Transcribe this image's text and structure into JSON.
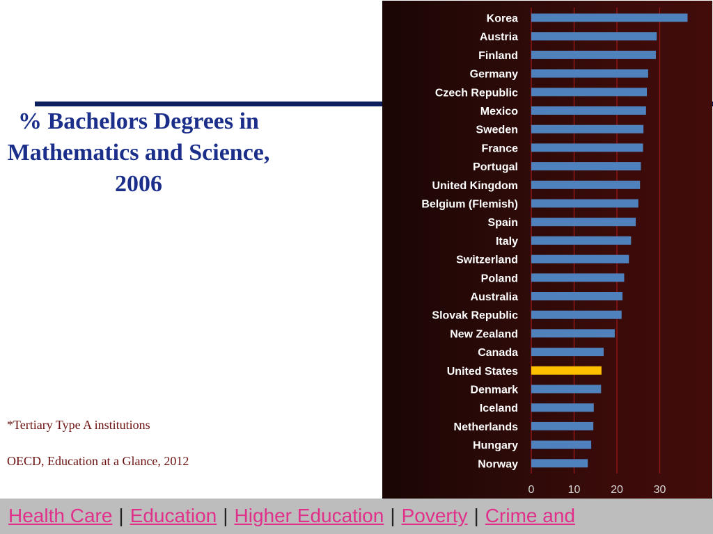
{
  "slide": {
    "title": "% Bachelors Degrees in Mathematics and Science, 2006",
    "footnote": "*Tertiary Type A institutions",
    "source": "OECD, Education at a Glance, 2012"
  },
  "colors": {
    "bar": "#4f81bd",
    "highlight": "#ffc000",
    "label": "#ffffff",
    "gridline": "#9a1a1a",
    "title": "#1a2e8a",
    "note": "#6b0f0f",
    "link": "#e0308a"
  },
  "chart_data": {
    "type": "bar",
    "orientation": "horizontal",
    "categories": [
      "Korea",
      "Austria",
      "Finland",
      "Germany",
      "Czech Republic",
      "Mexico",
      "Sweden",
      "France",
      "Portugal",
      "United Kingdom",
      "Belgium (Flemish)",
      "Spain",
      "Italy",
      "Switzerland",
      "Poland",
      "Australia",
      "Slovak Republic",
      "New Zealand",
      "Canada",
      "United States",
      "Denmark",
      "Iceland",
      "Netherlands",
      "Hungary",
      "Norway"
    ],
    "values": [
      36.5,
      29.3,
      29.1,
      27.3,
      27.0,
      26.8,
      26.2,
      26.1,
      25.6,
      25.4,
      25.0,
      24.4,
      23.3,
      22.8,
      21.7,
      21.3,
      21.1,
      19.5,
      16.9,
      16.4,
      16.3,
      14.6,
      14.5,
      14.0,
      13.2
    ],
    "highlight": "United States",
    "xlim": [
      0,
      37
    ],
    "xticks": [
      "0",
      "10",
      "20",
      "30"
    ],
    "grid": true
  },
  "footer": {
    "links": [
      "Health Care",
      "Education",
      "Higher Education",
      "Poverty",
      "Crime and"
    ],
    "separator": "|"
  }
}
